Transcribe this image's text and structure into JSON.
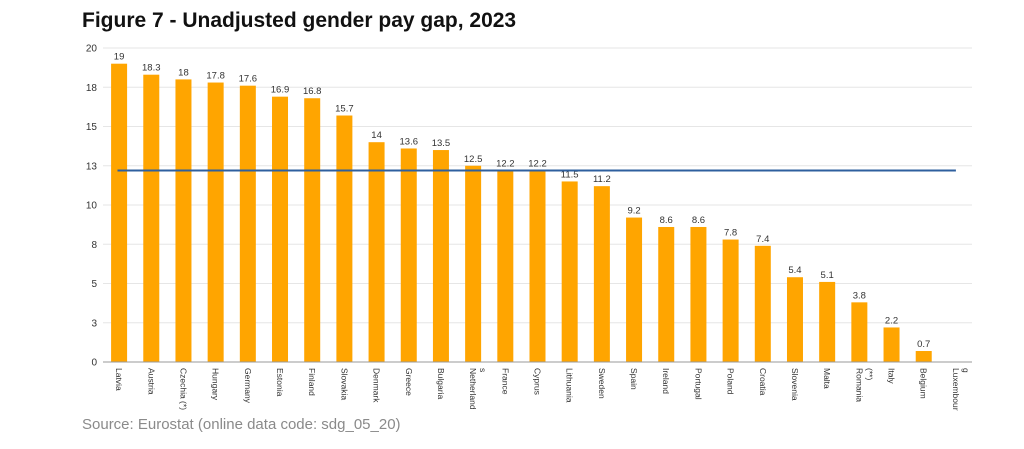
{
  "title": "Figure 7 - Unadjusted gender pay gap, 2023",
  "source": "Source: Eurostat (online data code: sdg_05_20)",
  "colors": {
    "bar": "#FFA500",
    "reference_line": "#2E5F9E",
    "grid": "#E6E6E6"
  },
  "chart_data": {
    "type": "bar",
    "title": "Figure 7 - Unadjusted gender pay gap, 2023",
    "xlabel": "",
    "ylabel": "",
    "ylim": [
      0,
      20
    ],
    "yticks": [
      {
        "label": "0",
        "value": 0
      },
      {
        "label": "3",
        "value": 2.5
      },
      {
        "label": "5",
        "value": 5
      },
      {
        "label": "8",
        "value": 7.5
      },
      {
        "label": "10",
        "value": 10
      },
      {
        "label": "13",
        "value": 12.5
      },
      {
        "label": "15",
        "value": 15
      },
      {
        "label": "18",
        "value": 17.5
      },
      {
        "label": "20",
        "value": 20
      }
    ],
    "grid": true,
    "categories": [
      [
        "Latvia"
      ],
      [
        "Austria"
      ],
      [
        "Czechia (*)"
      ],
      [
        "Hungary"
      ],
      [
        "Germany"
      ],
      [
        "Estonia"
      ],
      [
        "Finland"
      ],
      [
        "Slovakia"
      ],
      [
        "Denmark"
      ],
      [
        "Greece"
      ],
      [
        "Bulgaria"
      ],
      [
        "Netherland",
        "s"
      ],
      [
        "France"
      ],
      [
        "Cyprus"
      ],
      [
        "Lithuania"
      ],
      [
        "Sweden"
      ],
      [
        "Spain"
      ],
      [
        "Ireland"
      ],
      [
        "Portugal"
      ],
      [
        "Poland"
      ],
      [
        "Croatia"
      ],
      [
        "Slovenia"
      ],
      [
        "Malta"
      ],
      [
        "Romania",
        "(**)"
      ],
      [
        "Italy"
      ],
      [
        "Belgium"
      ],
      [
        "Luxembour",
        "g"
      ]
    ],
    "values": [
      19,
      18.3,
      18,
      17.8,
      17.6,
      16.9,
      16.8,
      15.7,
      14,
      13.6,
      13.5,
      12.5,
      12.2,
      12.2,
      11.5,
      11.2,
      9.2,
      8.6,
      8.6,
      7.8,
      7.4,
      5.4,
      5.1,
      3.8,
      2.2,
      0.7,
      0.0
    ],
    "value_labels": [
      "19",
      "18.3",
      "18",
      "17.8",
      "17.6",
      "16.9",
      "16.8",
      "15.7",
      "14",
      "13.6",
      "13.5",
      "12.5",
      "12.2",
      "12.2",
      "11.5",
      "11.2",
      "9.2",
      "8.6",
      "8.6",
      "7.8",
      "7.4",
      "5.4",
      "5.1",
      "3.8",
      "2.2",
      "0.7",
      ""
    ],
    "reference_line": {
      "value": 12.2
    }
  }
}
